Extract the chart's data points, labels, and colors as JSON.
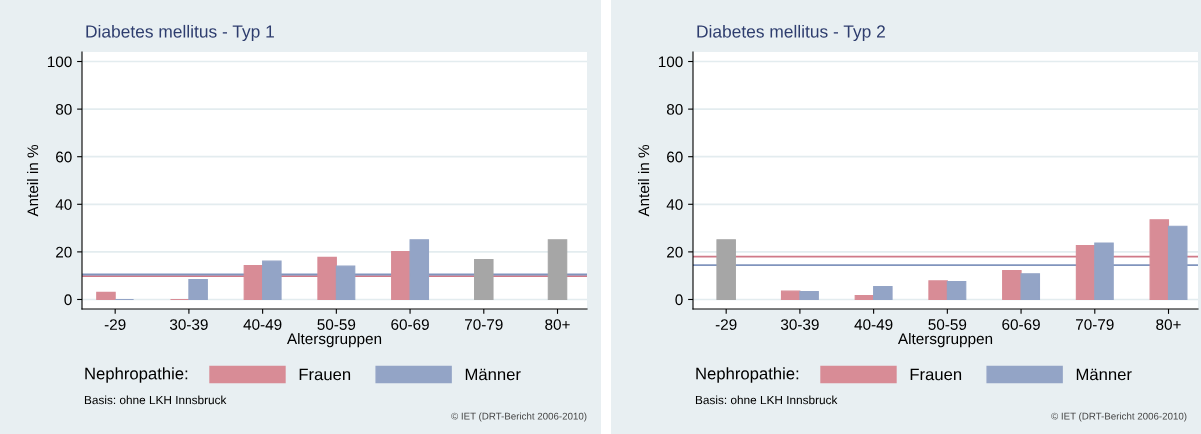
{
  "chart_data": [
    {
      "type": "bar",
      "title": "Diabetes mellitus - Typ 1",
      "xlabel": "Altersgruppen",
      "ylabel": "Anteil in %",
      "legend_title": "Nephropathie:",
      "categories": [
        "-29",
        "30-39",
        "40-49",
        "50-59",
        "60-69",
        "70-79",
        "80+"
      ],
      "series": [
        {
          "name": "Frauen",
          "color": "#d88c96",
          "values": [
            3.0,
            0,
            14.3,
            17.7,
            20.1,
            null,
            null
          ]
        },
        {
          "name": "Männer",
          "color": "#93a4c6",
          "values": [
            0,
            8.4,
            16.1,
            14.0,
            25.1,
            null,
            null
          ]
        },
        {
          "color": "#a6a6a6",
          "values": [
            null,
            null,
            null,
            null,
            null,
            16.8,
            25.1
          ]
        }
      ],
      "ref_lines": [
        {
          "axis": "y",
          "value": 9.8,
          "color": "#d07a88"
        },
        {
          "axis": "y",
          "value": 10.5,
          "color": "#8094bd"
        }
      ],
      "ylim": [
        -4,
        104
      ],
      "yticks": [
        0,
        20,
        40,
        60,
        80,
        100
      ],
      "grid": "y",
      "legend": "bottom",
      "annotations": [
        "Basis: ohne LKH Innsbruck",
        "© IET (DRT-Bericht 2006-2010)"
      ]
    },
    {
      "type": "bar",
      "title": "Diabetes mellitus - Typ 2",
      "xlabel": "Altersgruppen",
      "ylabel": "Anteil in %",
      "legend_title": "Nephropathie:",
      "categories": [
        "-29",
        "30-39",
        "40-49",
        "50-59",
        "60-69",
        "70-79",
        "80+"
      ],
      "series": [
        {
          "name": "Frauen",
          "color": "#d88c96",
          "values": [
            null,
            3.5,
            1.7,
            7.8,
            12.2,
            22.7,
            33.5
          ]
        },
        {
          "name": "Männer",
          "color": "#93a4c6",
          "values": [
            null,
            3.3,
            5.4,
            7.5,
            10.8,
            23.7,
            30.8
          ]
        },
        {
          "color": "#a6a6a6",
          "values": [
            25.1,
            null,
            null,
            null,
            null,
            null,
            null
          ]
        }
      ],
      "ref_lines": [
        {
          "axis": "y",
          "value": 18.0,
          "color": "#d07a88"
        },
        {
          "axis": "y",
          "value": 14.4,
          "color": "#8094bd"
        }
      ],
      "ylim": [
        -4,
        104
      ],
      "yticks": [
        0,
        20,
        40,
        60,
        80,
        100
      ],
      "grid": "y",
      "legend": "bottom",
      "annotations": [
        "Basis: ohne LKH Innsbruck",
        "© IET (DRT-Bericht 2006-2010)"
      ]
    }
  ]
}
